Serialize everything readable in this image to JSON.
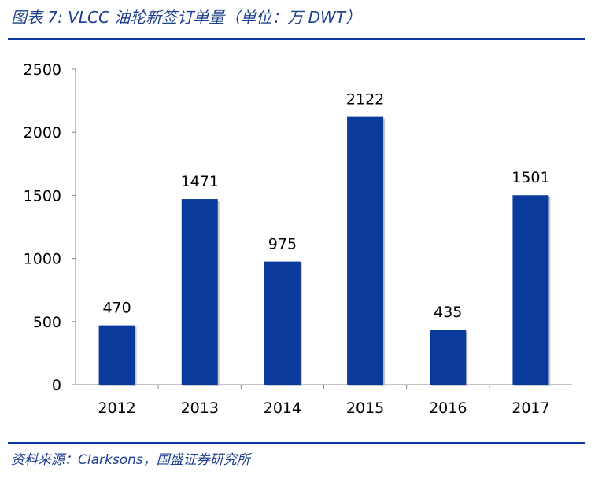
{
  "header": {
    "title": "图表 7:  VLCC 油轮新签订单量（单位：万 DWT）"
  },
  "footer": {
    "source": "资料来源：Clarksons，国盛证券研究所"
  },
  "colors": {
    "bar": "#0a3a9c",
    "accent": "#0d3aa0",
    "text_accent": "#1f3f8f"
  },
  "chart_data": {
    "type": "bar",
    "categories": [
      "2012",
      "2013",
      "2014",
      "2015",
      "2016",
      "2017"
    ],
    "values": [
      470,
      1471,
      975,
      2122,
      435,
      1501
    ],
    "data_labels": [
      "470",
      "1471",
      "975",
      "2122",
      "435",
      "1501"
    ],
    "ylim": [
      0,
      2500
    ],
    "yticks": [
      0,
      500,
      1000,
      1500,
      2000,
      2500
    ],
    "grid": false,
    "legend": "none"
  }
}
